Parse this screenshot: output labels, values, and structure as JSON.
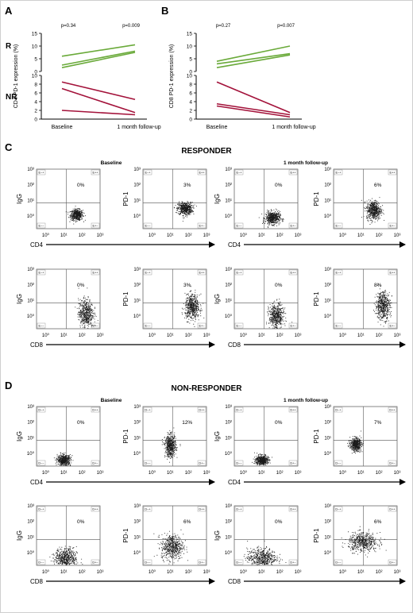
{
  "panels": {
    "A": "A",
    "B": "B",
    "C": "C",
    "D": "D"
  },
  "headings": {
    "C": "RESPONDER",
    "D": "NON-RESPONDER"
  },
  "timepoints": {
    "baseline": "Baseline",
    "followup": "1 month follow-up"
  },
  "group_labels": {
    "R": "R",
    "NR": "NR"
  },
  "colors": {
    "responder_line": "#6aaa3a",
    "non_responder_line": "#a3123a",
    "axis": "#000000",
    "dot": "#1a1a1a"
  },
  "chart_data": [
    {
      "id": "A",
      "type": "line",
      "title": "",
      "ylabel": "CD4 PD-1 expression (%)",
      "categories": [
        "Baseline",
        "1 month follow-up"
      ],
      "panels": {
        "R": {
          "ylim": [
            0,
            15
          ],
          "yticks": [
            0,
            5,
            10,
            15
          ],
          "p_values": [
            "p=0.34",
            "p=0.009"
          ],
          "series": [
            {
              "values": [
                6.0,
                10.5
              ]
            },
            {
              "values": [
                2.5,
                8.0
              ]
            },
            {
              "values": [
                1.5,
                7.5
              ]
            }
          ]
        },
        "NR": {
          "ylim": [
            0,
            10
          ],
          "yticks": [
            0,
            2,
            4,
            6,
            8,
            10
          ],
          "series": [
            {
              "values": [
                8.5,
                4.5
              ]
            },
            {
              "values": [
                7.0,
                1.5
              ]
            },
            {
              "values": [
                2.0,
                1.0
              ]
            }
          ]
        }
      }
    },
    {
      "id": "B",
      "type": "line",
      "title": "",
      "ylabel": "CD8 PD-1 expression (%)",
      "categories": [
        "Baseline",
        "1 month follow-up"
      ],
      "panels": {
        "R": {
          "ylim": [
            0,
            15
          ],
          "yticks": [
            0,
            5,
            10,
            15
          ],
          "p_values": [
            "p=0.27",
            "p=0.007"
          ],
          "series": [
            {
              "values": [
                4.0,
                10.0
              ]
            },
            {
              "values": [
                3.0,
                7.0
              ]
            },
            {
              "values": [
                1.5,
                6.5
              ]
            }
          ]
        },
        "NR": {
          "ylim": [
            0,
            10
          ],
          "yticks": [
            0,
            2,
            4,
            6,
            8,
            10
          ],
          "series": [
            {
              "values": [
                8.5,
                1.5
              ]
            },
            {
              "values": [
                3.5,
                1.0
              ]
            },
            {
              "values": [
                3.0,
                0.5
              ]
            }
          ]
        }
      }
    },
    {
      "id": "C",
      "type": "scatter",
      "heading": "RESPONDER",
      "xticks": [
        "10⁰",
        "10¹",
        "10²",
        "10³"
      ],
      "yticks": [
        "10⁰",
        "10¹",
        "10²",
        "10³"
      ],
      "quadrant_labels": [
        "E−+",
        "E++",
        "E−−",
        "E+−"
      ],
      "plots": [
        {
          "timepoint": "Baseline",
          "xlabel": "CD4",
          "ylabel": "IgG",
          "percent": "0%",
          "cluster_log": [
            1.7,
            0.1
          ],
          "spread_log": [
            0.17,
            0.17
          ]
        },
        {
          "timepoint": "Baseline",
          "xlabel": "CD4",
          "ylabel": "PD-1",
          "percent": "3%",
          "cluster_log": [
            1.8,
            0.5
          ],
          "spread_log": [
            0.2,
            0.2
          ]
        },
        {
          "timepoint": "1 month follow-up",
          "xlabel": "CD4",
          "ylabel": "IgG",
          "percent": "0%",
          "cluster_log": [
            1.6,
            -0.1
          ],
          "spread_log": [
            0.2,
            0.2
          ]
        },
        {
          "timepoint": "1 month follow-up",
          "xlabel": "CD4",
          "ylabel": "PD-1",
          "percent": "6%",
          "cluster_log": [
            1.7,
            0.4
          ],
          "spread_log": [
            0.2,
            0.3
          ]
        },
        {
          "timepoint": "Baseline",
          "xlabel": "CD8",
          "ylabel": "IgG",
          "percent": "0%",
          "cluster_log": [
            2.2,
            0.2
          ],
          "spread_log": [
            0.2,
            0.45
          ]
        },
        {
          "timepoint": "Baseline",
          "xlabel": "CD8",
          "ylabel": "PD-1",
          "percent": "3%",
          "cluster_log": [
            2.2,
            0.6
          ],
          "spread_log": [
            0.2,
            0.4
          ]
        },
        {
          "timepoint": "1 month follow-up",
          "xlabel": "CD8",
          "ylabel": "IgG",
          "percent": "0%",
          "cluster_log": [
            1.8,
            0.0
          ],
          "spread_log": [
            0.2,
            0.4
          ]
        },
        {
          "timepoint": "1 month follow-up",
          "xlabel": "CD8",
          "ylabel": "PD-1",
          "percent": "8%",
          "cluster_log": [
            2.2,
            0.7
          ],
          "spread_log": [
            0.2,
            0.45
          ]
        }
      ]
    },
    {
      "id": "D",
      "type": "scatter",
      "heading": "NON-RESPONDER",
      "xticks": [
        "10⁰",
        "10¹",
        "10²",
        "10³"
      ],
      "yticks": [
        "10⁰",
        "10¹",
        "10²",
        "10³"
      ],
      "quadrant_labels": [
        "D−+",
        "D++",
        "D−−",
        "D+−"
      ],
      "plots": [
        {
          "timepoint": "Baseline",
          "xlabel": "CD4",
          "ylabel": "IgG",
          "percent": "0%",
          "cluster_log": [
            1.0,
            -0.4
          ],
          "spread_log": [
            0.18,
            0.17
          ]
        },
        {
          "timepoint": "Baseline",
          "xlabel": "CD4",
          "ylabel": "PD-1",
          "percent": "12%",
          "cluster_log": [
            1.0,
            0.5
          ],
          "spread_log": [
            0.15,
            0.35
          ]
        },
        {
          "timepoint": "1 month follow-up",
          "xlabel": "CD4",
          "ylabel": "IgG",
          "percent": "0%",
          "cluster_log": [
            1.0,
            -0.4
          ],
          "spread_log": [
            0.17,
            0.15
          ]
        },
        {
          "timepoint": "1 month follow-up",
          "xlabel": "CD4",
          "ylabel": "PD-1",
          "percent": "7%",
          "cluster_log": [
            0.7,
            0.6
          ],
          "spread_log": [
            0.15,
            0.2
          ]
        },
        {
          "timepoint": "Baseline",
          "xlabel": "CD8",
          "ylabel": "IgG",
          "percent": "0%",
          "cluster_log": [
            1.1,
            -0.3
          ],
          "spread_log": [
            0.3,
            0.3
          ]
        },
        {
          "timepoint": "Baseline",
          "xlabel": "CD8",
          "ylabel": "PD-1",
          "percent": "6%",
          "cluster_log": [
            1.1,
            0.4
          ],
          "spread_log": [
            0.3,
            0.4
          ]
        },
        {
          "timepoint": "1 month follow-up",
          "xlabel": "CD8",
          "ylabel": "IgG",
          "percent": "0%",
          "cluster_log": [
            1.0,
            -0.3
          ],
          "spread_log": [
            0.4,
            0.3
          ]
        },
        {
          "timepoint": "1 month follow-up",
          "xlabel": "CD8",
          "ylabel": "PD-1",
          "percent": "6%",
          "cluster_log": [
            1.1,
            0.7
          ],
          "spread_log": [
            0.4,
            0.3
          ]
        }
      ]
    }
  ]
}
